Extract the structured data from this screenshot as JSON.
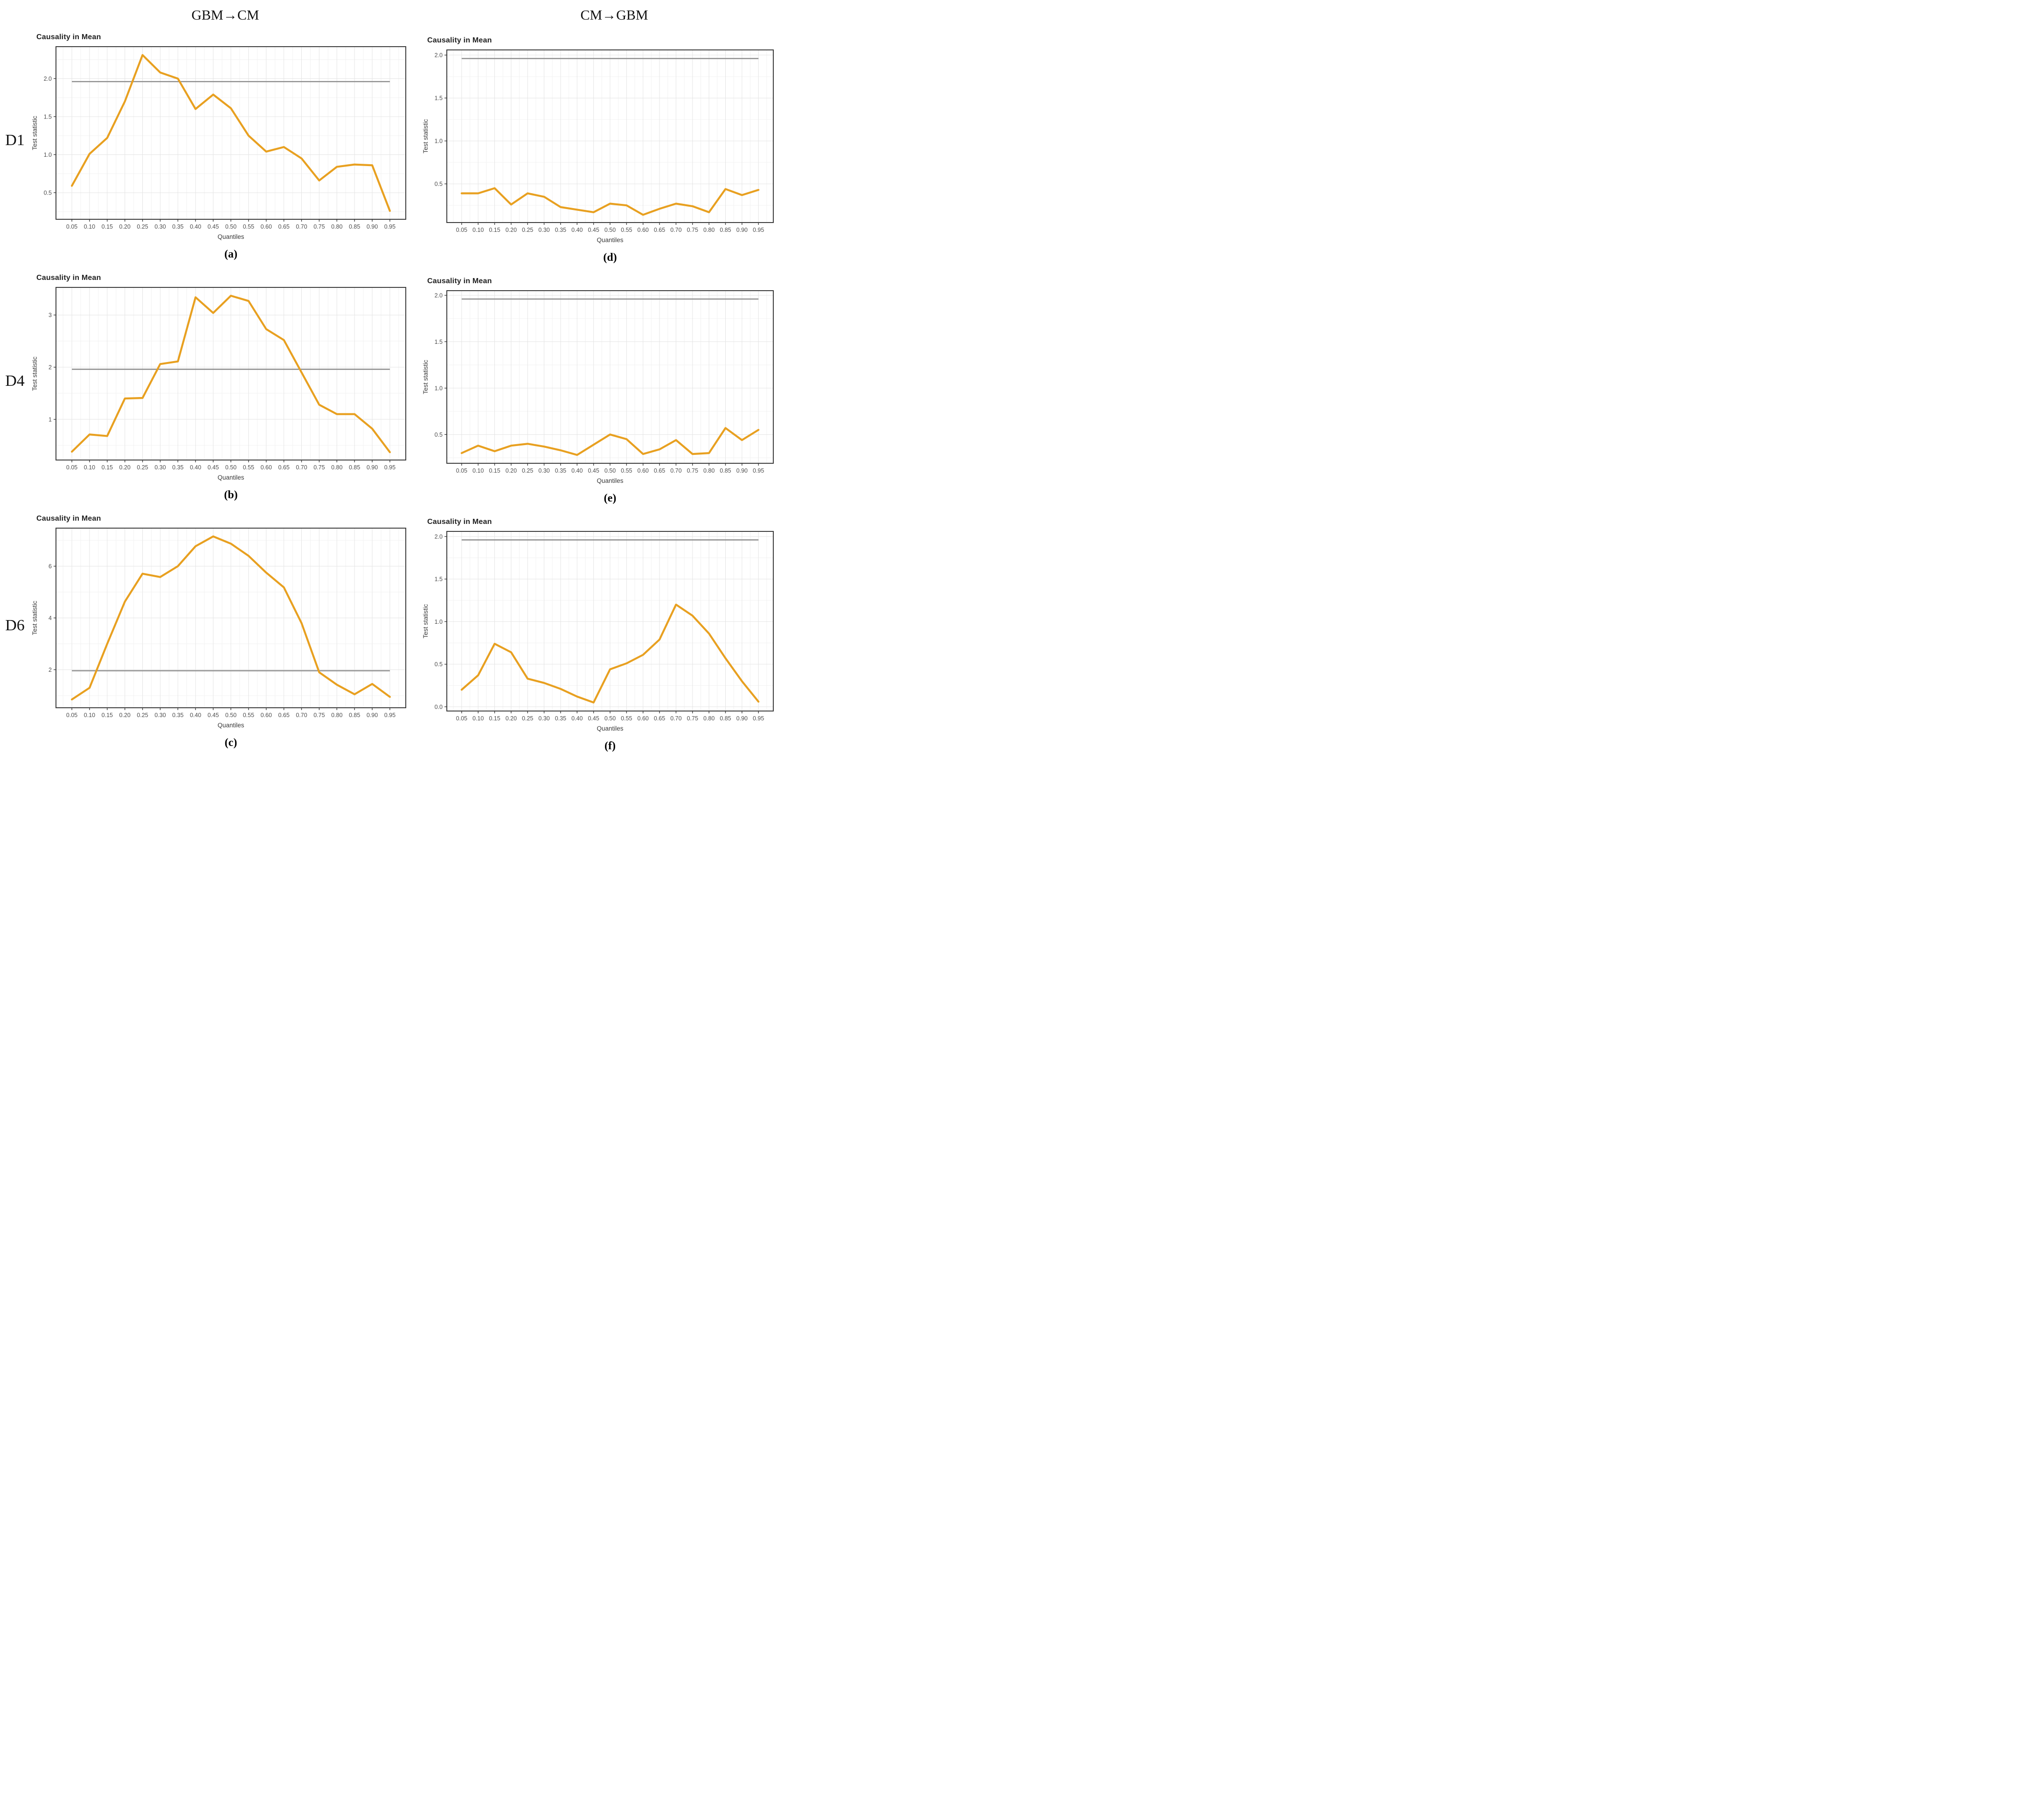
{
  "page": {
    "background": "#ffffff"
  },
  "columns": [
    {
      "header": "GBM→CM"
    },
    {
      "header": "CM→GBM"
    }
  ],
  "rows": [
    {
      "label": "D1"
    },
    {
      "label": "D4"
    },
    {
      "label": "D6"
    }
  ],
  "shared": {
    "title": "Causality in Mean",
    "xlabel": "Quantiles",
    "ylabel": "Test statistic",
    "critical_value": 1.96,
    "xlim": [
      0.005,
      0.995
    ],
    "colors": {
      "series": "#E8A020",
      "critical_line": "#8C8C8C",
      "panel_border": "#3C3C3C",
      "grid_major": "#E4E4E4",
      "grid_minor": "#F2F2F2",
      "tick_text": "#4D4D4D",
      "axis_title": "#3A3A3A",
      "title_text": "#212121",
      "background": "#FFFFFF"
    }
  },
  "chart_data": [
    {
      "id": "a",
      "caption": "(a)",
      "row": "D1",
      "column": "GBM→CM",
      "type": "line",
      "title": "Causality in Mean",
      "xlabel": "Quantiles",
      "ylabel": "Test statistic",
      "x": [
        0.05,
        0.1,
        0.15,
        0.2,
        0.25,
        0.3,
        0.35,
        0.4,
        0.45,
        0.5,
        0.55,
        0.6,
        0.65,
        0.7,
        0.75,
        0.8,
        0.85,
        0.9,
        0.95
      ],
      "values": [
        0.59,
        1.01,
        1.22,
        1.7,
        2.31,
        2.08,
        2.0,
        1.6,
        1.79,
        1.61,
        1.25,
        1.04,
        1.1,
        0.95,
        0.66,
        0.84,
        0.87,
        0.86,
        0.26
      ],
      "hline": 1.96,
      "ylim": [
        0.15,
        2.42
      ],
      "yticks": [
        0.5,
        1.0,
        1.5,
        2.0
      ],
      "ytick_labels": [
        "0.5",
        "1.0",
        "1.5",
        "2.0"
      ]
    },
    {
      "id": "b",
      "caption": "(b)",
      "row": "D4",
      "column": "GBM→CM",
      "type": "line",
      "title": "Causality in Mean",
      "xlabel": "Quantiles",
      "ylabel": "Test statistic",
      "x": [
        0.05,
        0.1,
        0.15,
        0.2,
        0.25,
        0.3,
        0.35,
        0.4,
        0.45,
        0.5,
        0.55,
        0.6,
        0.65,
        0.7,
        0.75,
        0.8,
        0.85,
        0.9,
        0.95
      ],
      "values": [
        0.38,
        0.71,
        0.68,
        1.4,
        1.41,
        2.06,
        2.11,
        3.34,
        3.04,
        3.37,
        3.27,
        2.73,
        2.52,
        1.9,
        1.28,
        1.1,
        1.1,
        0.82,
        0.37
      ],
      "hline": 1.96,
      "ylim": [
        0.22,
        3.53
      ],
      "yticks": [
        1,
        2,
        3
      ],
      "ytick_labels": [
        "1",
        "2",
        "3"
      ]
    },
    {
      "id": "c",
      "caption": "(c)",
      "row": "D6",
      "column": "GBM→CM",
      "type": "line",
      "title": "Causality in Mean",
      "xlabel": "Quantiles",
      "ylabel": "Test statistic",
      "x": [
        0.05,
        0.1,
        0.15,
        0.2,
        0.25,
        0.3,
        0.35,
        0.4,
        0.45,
        0.5,
        0.55,
        0.6,
        0.65,
        0.7,
        0.75,
        0.8,
        0.85,
        0.9,
        0.95
      ],
      "values": [
        0.85,
        1.3,
        3.0,
        4.63,
        5.71,
        5.58,
        6.0,
        6.77,
        7.15,
        6.87,
        6.4,
        5.75,
        5.18,
        3.8,
        1.9,
        1.42,
        1.05,
        1.45,
        0.95
      ],
      "hline": 1.96,
      "ylim": [
        0.53,
        7.47
      ],
      "yticks": [
        2,
        4,
        6
      ],
      "ytick_labels": [
        "2",
        "4",
        "6"
      ]
    },
    {
      "id": "d",
      "caption": "(d)",
      "row": "D1",
      "column": "CM→GBM",
      "type": "line",
      "title": "Causality in Mean",
      "xlabel": "Quantiles",
      "ylabel": "Test statistic",
      "x": [
        0.05,
        0.1,
        0.15,
        0.2,
        0.25,
        0.3,
        0.35,
        0.4,
        0.45,
        0.5,
        0.55,
        0.6,
        0.65,
        0.7,
        0.75,
        0.8,
        0.85,
        0.9,
        0.95
      ],
      "values": [
        0.39,
        0.39,
        0.45,
        0.26,
        0.39,
        0.35,
        0.23,
        0.2,
        0.17,
        0.27,
        0.25,
        0.14,
        0.21,
        0.27,
        0.24,
        0.17,
        0.44,
        0.37,
        0.43
      ],
      "hline": 1.96,
      "ylim": [
        0.05,
        2.06
      ],
      "yticks": [
        0.5,
        1.0,
        1.5,
        2.0
      ],
      "ytick_labels": [
        "0.5",
        "1.0",
        "1.5",
        "2.0"
      ]
    },
    {
      "id": "e",
      "caption": "(e)",
      "row": "D4",
      "column": "CM→GBM",
      "type": "line",
      "title": "Causality in Mean",
      "xlabel": "Quantiles",
      "ylabel": "Test statistic",
      "x": [
        0.05,
        0.1,
        0.15,
        0.2,
        0.25,
        0.3,
        0.35,
        0.4,
        0.45,
        0.5,
        0.55,
        0.6,
        0.65,
        0.7,
        0.75,
        0.8,
        0.85,
        0.9,
        0.95
      ],
      "values": [
        0.3,
        0.38,
        0.32,
        0.38,
        0.4,
        0.37,
        0.33,
        0.28,
        0.39,
        0.5,
        0.45,
        0.29,
        0.34,
        0.44,
        0.29,
        0.3,
        0.57,
        0.44,
        0.55
      ],
      "hline": 1.96,
      "ylim": [
        0.19,
        2.05
      ],
      "yticks": [
        0.5,
        1.0,
        1.5,
        2.0
      ],
      "ytick_labels": [
        "0.5",
        "1.0",
        "1.5",
        "2.0"
      ]
    },
    {
      "id": "f",
      "caption": "(f)",
      "row": "D6",
      "column": "CM→GBM",
      "type": "line",
      "title": "Causality in Mean",
      "xlabel": "Quantiles",
      "ylabel": "Test statistic",
      "x": [
        0.05,
        0.1,
        0.15,
        0.2,
        0.25,
        0.3,
        0.35,
        0.4,
        0.45,
        0.5,
        0.55,
        0.6,
        0.65,
        0.7,
        0.75,
        0.8,
        0.85,
        0.9,
        0.95
      ],
      "values": [
        0.2,
        0.37,
        0.74,
        0.64,
        0.33,
        0.28,
        0.21,
        0.12,
        0.05,
        0.44,
        0.51,
        0.61,
        0.79,
        1.2,
        1.07,
        0.86,
        0.57,
        0.3,
        0.06
      ],
      "hline": 1.96,
      "ylim": [
        -0.05,
        2.06
      ],
      "yticks": [
        0.0,
        0.5,
        1.0,
        1.5,
        2.0
      ],
      "ytick_labels": [
        "0.0",
        "0.5",
        "1.0",
        "1.5",
        "2.0"
      ]
    }
  ]
}
